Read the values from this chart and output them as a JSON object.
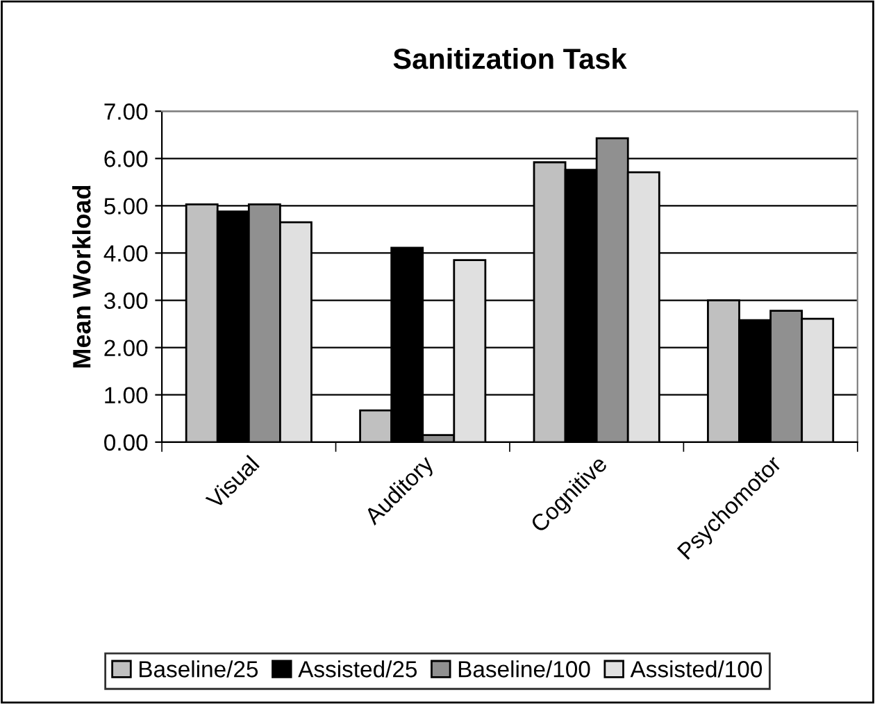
{
  "chart_data": {
    "type": "bar",
    "title": "Sanitization Task",
    "ylabel": "Mean Workload",
    "categories": [
      "Visual",
      "Auditory",
      "Cognitive",
      "Psychomotor"
    ],
    "series": [
      {
        "name": "Baseline/25",
        "color": "#c0c0c0",
        "values": [
          5.03,
          0.67,
          5.92,
          3.0
        ]
      },
      {
        "name": "Assisted/25",
        "color": "#000000",
        "values": [
          4.88,
          4.11,
          5.76,
          2.58
        ]
      },
      {
        "name": "Baseline/100",
        "color": "#909090",
        "values": [
          5.03,
          0.15,
          6.43,
          2.78
        ]
      },
      {
        "name": "Assisted/100",
        "color": "#e0e0e0",
        "values": [
          4.65,
          3.85,
          5.71,
          2.61
        ]
      }
    ],
    "ylim": [
      0,
      7
    ],
    "yticks": [
      {
        "value": 0,
        "label": "0.00"
      },
      {
        "value": 1,
        "label": "1.00"
      },
      {
        "value": 2,
        "label": "2.00"
      },
      {
        "value": 3,
        "label": "3.00"
      },
      {
        "value": 4,
        "label": "4.00"
      },
      {
        "value": 5,
        "label": "5.00"
      },
      {
        "value": 6,
        "label": "6.00"
      },
      {
        "value": 7,
        "label": "7.00"
      }
    ],
    "grid": "y",
    "legend": "bottom"
  }
}
